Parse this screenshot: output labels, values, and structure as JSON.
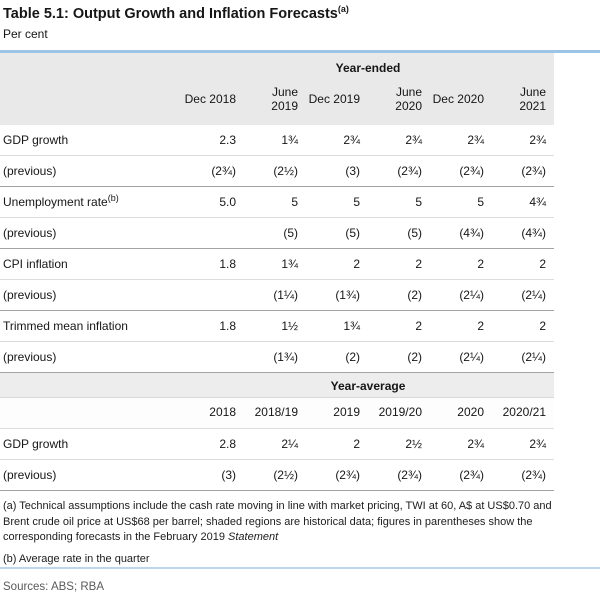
{
  "page": {
    "title": "Table 5.1: Output Growth and Inflation Forecasts",
    "title_sup": "(a)",
    "subtitle": "Per cent"
  },
  "colors": {
    "accent_blue_rule": "#9dc3e6",
    "header_band_gray": "#e9e9e9"
  },
  "year_ended": {
    "section_label": "Year-ended",
    "columns": [
      "Dec 2018",
      "June 2019",
      "Dec 2019",
      "June 2020",
      "Dec 2020",
      "June 2021"
    ],
    "rows": [
      {
        "label": "GDP growth",
        "label_sup": "",
        "values": [
          "2.3",
          "1¾",
          "2¾",
          "2¾",
          "2¾",
          "2¾"
        ]
      },
      {
        "label": "(previous)",
        "label_sup": "",
        "values": [
          "(2¾)",
          "(2½)",
          "(3)",
          "(2¾)",
          "(2¾)",
          "(2¾)"
        ]
      },
      {
        "label": "Unemployment rate",
        "label_sup": "(b)",
        "values": [
          "5.0",
          "5",
          "5",
          "5",
          "5",
          "4¾"
        ]
      },
      {
        "label": "(previous)",
        "label_sup": "",
        "values": [
          "",
          "(5)",
          "(5)",
          "(5)",
          "(4¾)",
          "(4¾)"
        ]
      },
      {
        "label": "CPI inflation",
        "label_sup": "",
        "values": [
          "1.8",
          "1¾",
          "2",
          "2",
          "2",
          "2"
        ]
      },
      {
        "label": "(previous)",
        "label_sup": "",
        "values": [
          "",
          "(1¼)",
          "(1¾)",
          "(2)",
          "(2¼)",
          "(2¼)"
        ]
      },
      {
        "label": "Trimmed mean inflation",
        "label_sup": "",
        "values": [
          "1.8",
          "1½",
          "1¾",
          "2",
          "2",
          "2"
        ]
      },
      {
        "label": "(previous)",
        "label_sup": "",
        "values": [
          "",
          "(1¾)",
          "(2)",
          "(2)",
          "(2¼)",
          "(2¼)"
        ]
      }
    ]
  },
  "year_average": {
    "section_label": "Year-average",
    "columns": [
      "2018",
      "2018/19",
      "2019",
      "2019/20",
      "2020",
      "2020/21"
    ],
    "rows": [
      {
        "label": "GDP growth",
        "label_sup": "",
        "values": [
          "2.8",
          "2¼",
          "2",
          "2½",
          "2¾",
          "2¾"
        ]
      },
      {
        "label": "(previous)",
        "label_sup": "",
        "values": [
          "(3)",
          "(2½)",
          "(2¾)",
          "(2¾)",
          "(2¾)",
          "(2¾)"
        ]
      }
    ]
  },
  "footnotes": {
    "a_text": "(a) Technical assumptions include the cash rate moving in line with market pricing, TWI at 60, A$ at US$0.70 and Brent crude oil price at US$68 per barrel; shaded regions are historical data; figures in parentheses show the corresponding forecasts in the February 2019 ",
    "a_italic": "Statement",
    "b_text": "(b) Average rate in the quarter",
    "sources": "Sources: ABS; RBA"
  }
}
